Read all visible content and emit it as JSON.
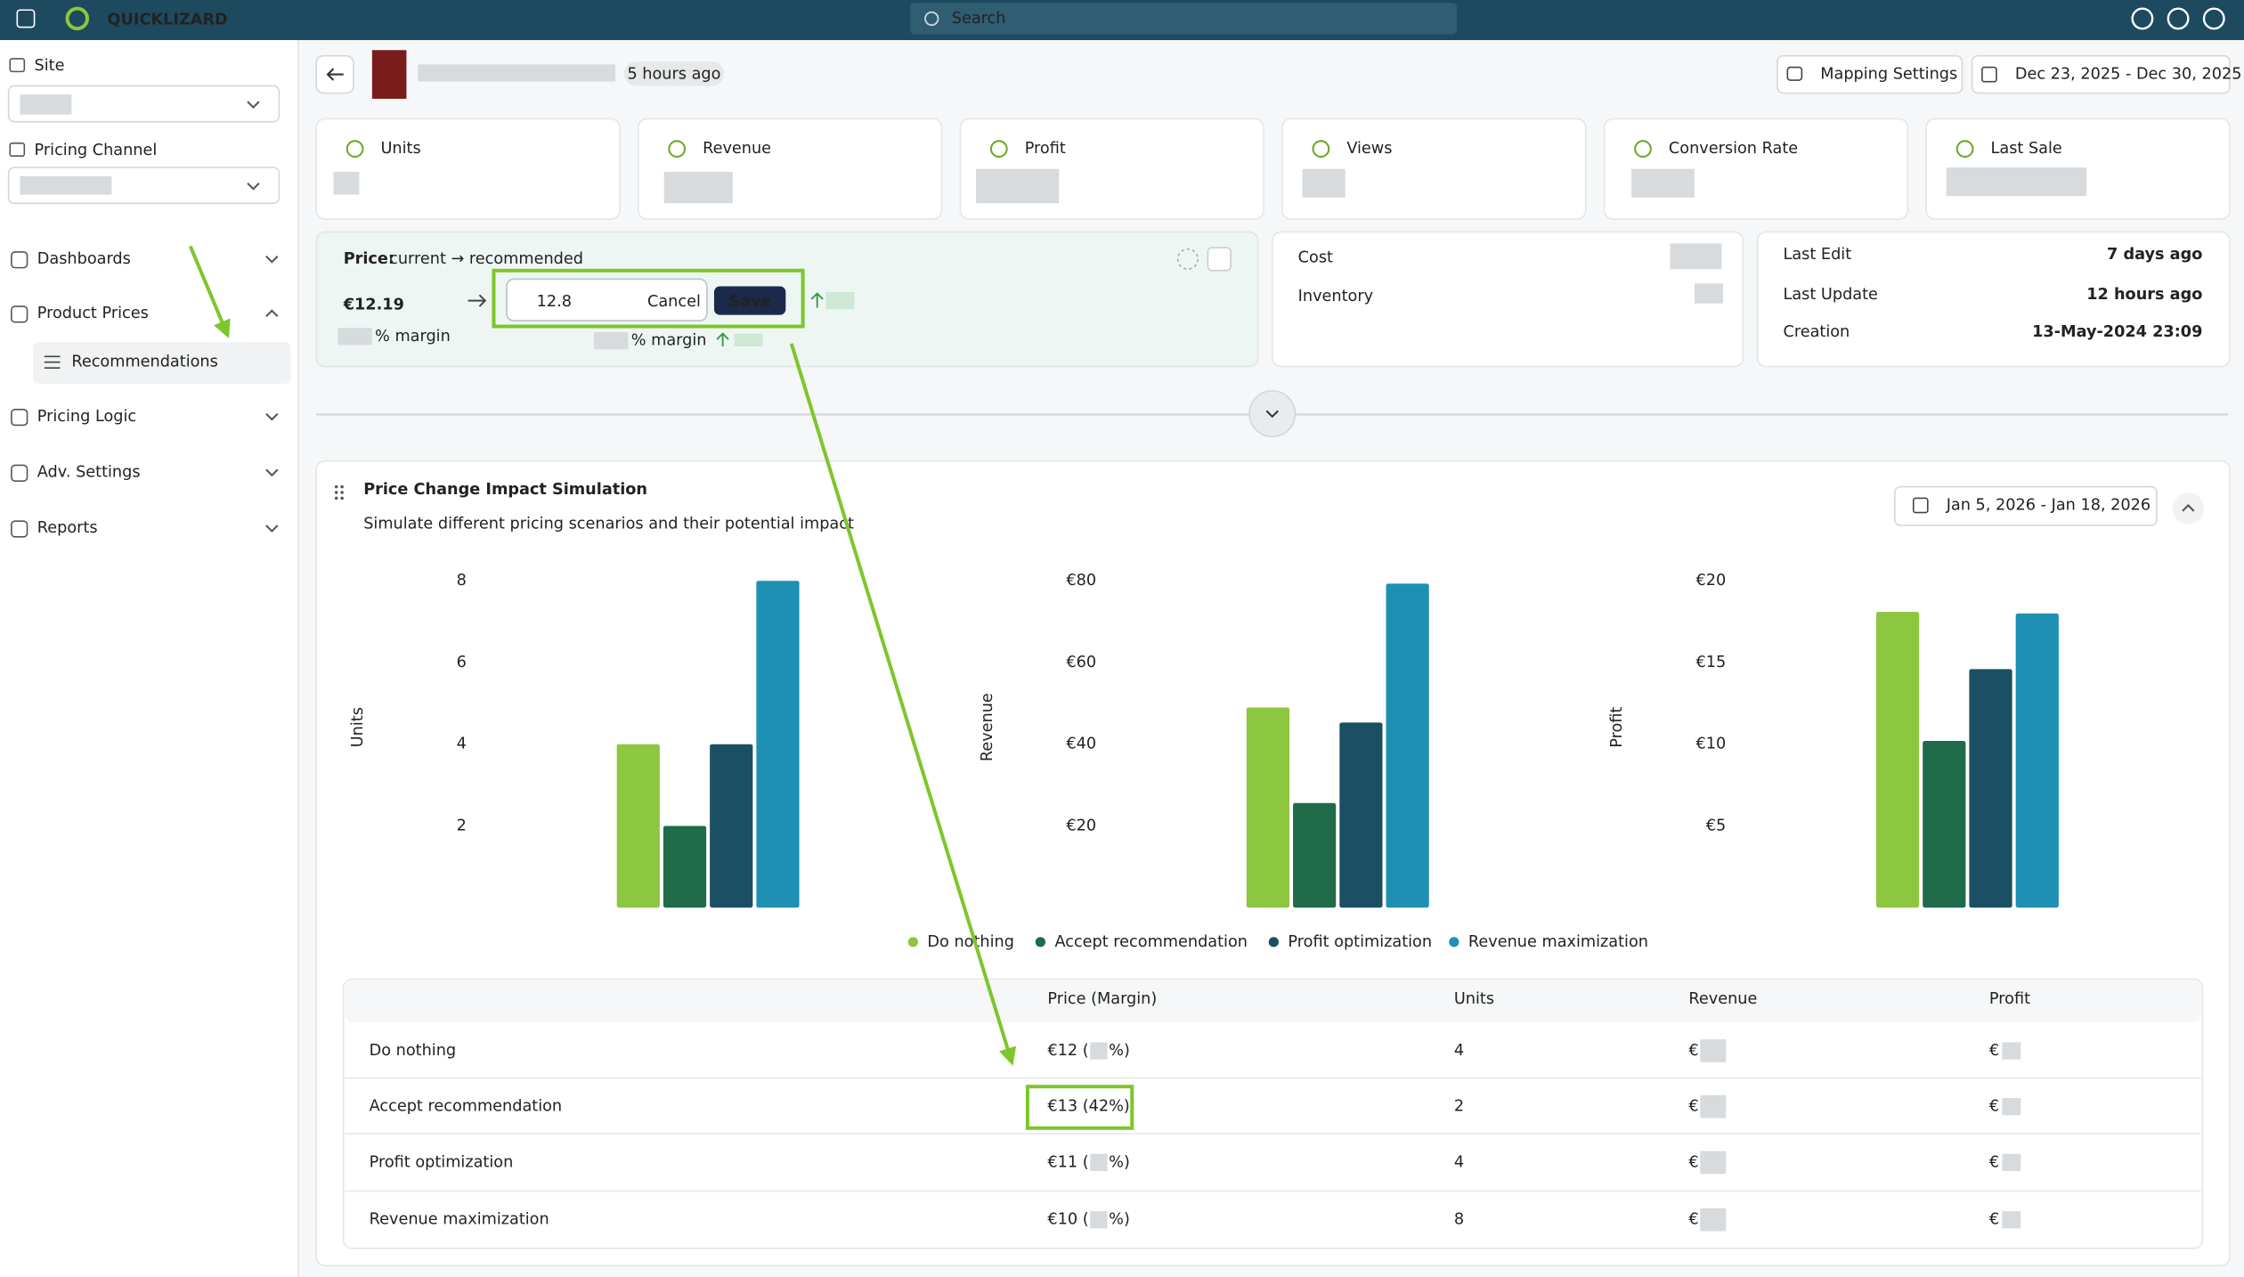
{
  "top_bar": {
    "brand": "QUICKLIZARD",
    "search_placeholder": "Search"
  },
  "sidebar": {
    "site_label": "Site",
    "channel_label": "Pricing Channel",
    "nav": [
      "Dashboards",
      "Product Prices",
      "Recommendations",
      "Pricing Logic",
      "Adv. Settings",
      "Reports"
    ]
  },
  "header": {
    "updated": "5 hours ago",
    "mapping_button": "Mapping Settings",
    "date_range": "Dec 23, 2025 - Dec 30, 2025"
  },
  "kpis": [
    "Units",
    "Revenue",
    "Profit",
    "Views",
    "Conversion Rate",
    "Last Sale"
  ],
  "price_card": {
    "label": "Price:",
    "sublabel": "current → recommended",
    "current": "€12.19",
    "recommended_input": "12.8",
    "cancel": "Cancel",
    "save": "Save",
    "margin_suffix": "% margin"
  },
  "cost_card": {
    "rows": [
      "Cost",
      "Inventory"
    ]
  },
  "dates_card": {
    "rows": [
      {
        "label": "Last Edit",
        "value": "7 days ago"
      },
      {
        "label": "Last Update",
        "value": "12 hours ago"
      },
      {
        "label": "Creation",
        "value": "13-May-2024 23:09"
      }
    ]
  },
  "simulation": {
    "title": "Price Change Impact Simulation",
    "subtitle": "Simulate different pricing scenarios and their potential impact",
    "date_range": "Jan 5, 2026 - Jan 18, 2026"
  },
  "chart_data": [
    {
      "type": "bar",
      "y_label": "Units",
      "ylim": [
        0,
        8.2
      ],
      "yticks": [
        2,
        4,
        6,
        8
      ],
      "grid": false,
      "series": [
        {
          "name": "Do nothing",
          "color": "#8dc63f",
          "values": [
            4
          ]
        },
        {
          "name": "Accept recommendation",
          "color": "#1f6b4a",
          "values": [
            2
          ]
        },
        {
          "name": "Profit optimization",
          "color": "#1b4f63",
          "values": [
            4
          ]
        },
        {
          "name": "Revenue maximization",
          "color": "#1e90b4",
          "values": [
            8
          ]
        }
      ]
    },
    {
      "type": "bar",
      "y_label": "Revenue",
      "ylim": [
        0,
        82
      ],
      "yticks": [
        {
          "value": 20,
          "label": "€20"
        },
        {
          "value": 40,
          "label": "€40"
        },
        {
          "value": 60,
          "label": "€60"
        },
        {
          "value": 80,
          "label": "€80"
        }
      ],
      "grid": false,
      "series": [
        {
          "name": "Do nothing",
          "color": "#8dc63f",
          "values": [
            49
          ]
        },
        {
          "name": "Accept recommendation",
          "color": "#1f6b4a",
          "values": [
            25.6
          ]
        },
        {
          "name": "Profit optimization",
          "color": "#1b4f63",
          "values": [
            45.3
          ]
        },
        {
          "name": "Revenue maximization",
          "color": "#1e90b4",
          "values": [
            79.3
          ]
        }
      ]
    },
    {
      "type": "bar",
      "y_label": "Profit",
      "ylim": [
        0,
        20.5
      ],
      "yticks": [
        {
          "value": 5,
          "label": "€5"
        },
        {
          "value": 10,
          "label": "€10"
        },
        {
          "value": 15,
          "label": "€15"
        },
        {
          "value": 20,
          "label": "€20"
        }
      ],
      "grid": false,
      "series": [
        {
          "name": "Do nothing",
          "color": "#8dc63f",
          "values": [
            18.1
          ]
        },
        {
          "name": "Accept recommendation",
          "color": "#1f6b4a",
          "values": [
            10.2
          ]
        },
        {
          "name": "Profit optimization",
          "color": "#1b4f63",
          "values": [
            14.6
          ]
        },
        {
          "name": "Revenue maximization",
          "color": "#1e90b4",
          "values": [
            18
          ]
        }
      ]
    }
  ],
  "table": {
    "headers": [
      "Price (Margin)",
      "Units",
      "Revenue",
      "Profit"
    ],
    "rows": [
      {
        "scenario": "Do nothing",
        "price": "€12 (",
        "margin_suffix": "%)",
        "units": 4,
        "revenue_prefix": "€",
        "profit_prefix": "€"
      },
      {
        "scenario": "Accept recommendation",
        "price": "€13 (42%)",
        "units": 2,
        "revenue_prefix": "€",
        "profit_prefix": "€"
      },
      {
        "scenario": "Profit optimization",
        "price": "€11 (",
        "margin_suffix": "%)",
        "units": 4,
        "revenue_prefix": "€",
        "profit_prefix": "€"
      },
      {
        "scenario": "Revenue maximization",
        "price": "€10 (",
        "margin_suffix": "%)",
        "units": 8,
        "revenue_prefix": "€",
        "profit_prefix": "€"
      }
    ]
  }
}
